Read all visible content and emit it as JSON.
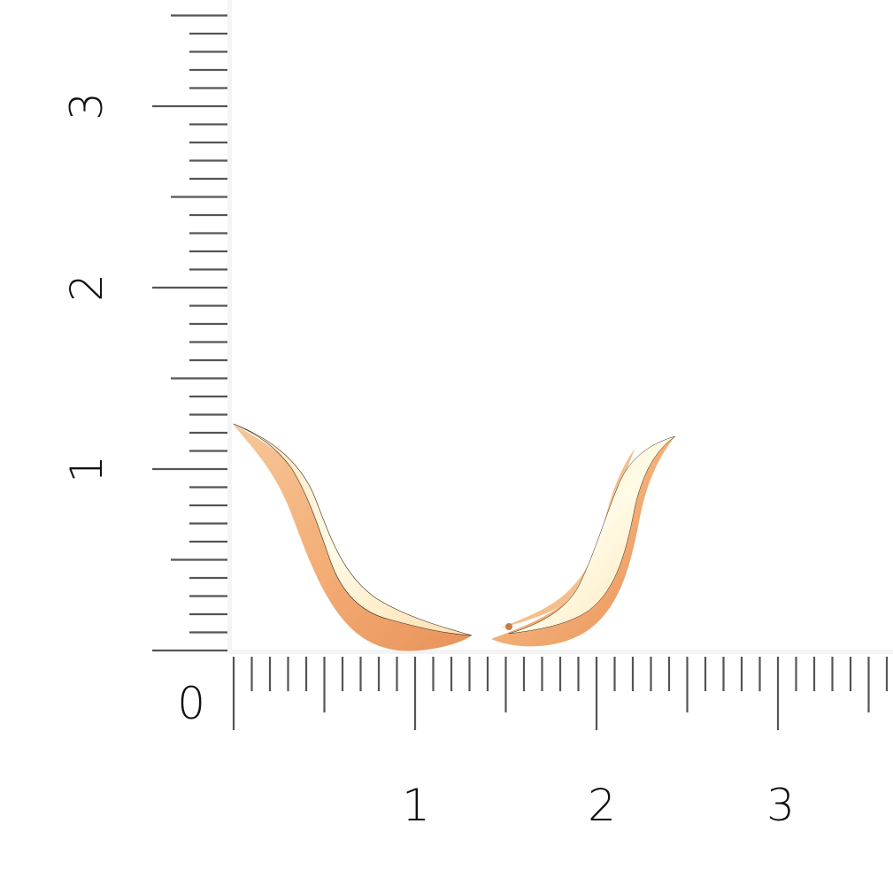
{
  "ruler": {
    "unit_labels_vertical": [
      "0",
      "1",
      "2",
      "3"
    ],
    "unit_labels_horizontal": [
      "1",
      "2",
      "3"
    ],
    "minor_divisions_per_unit": 10,
    "tick_color": "#555555"
  },
  "product": {
    "metal_color": "#f2b27a",
    "highlight_color": "#fff4d6"
  }
}
